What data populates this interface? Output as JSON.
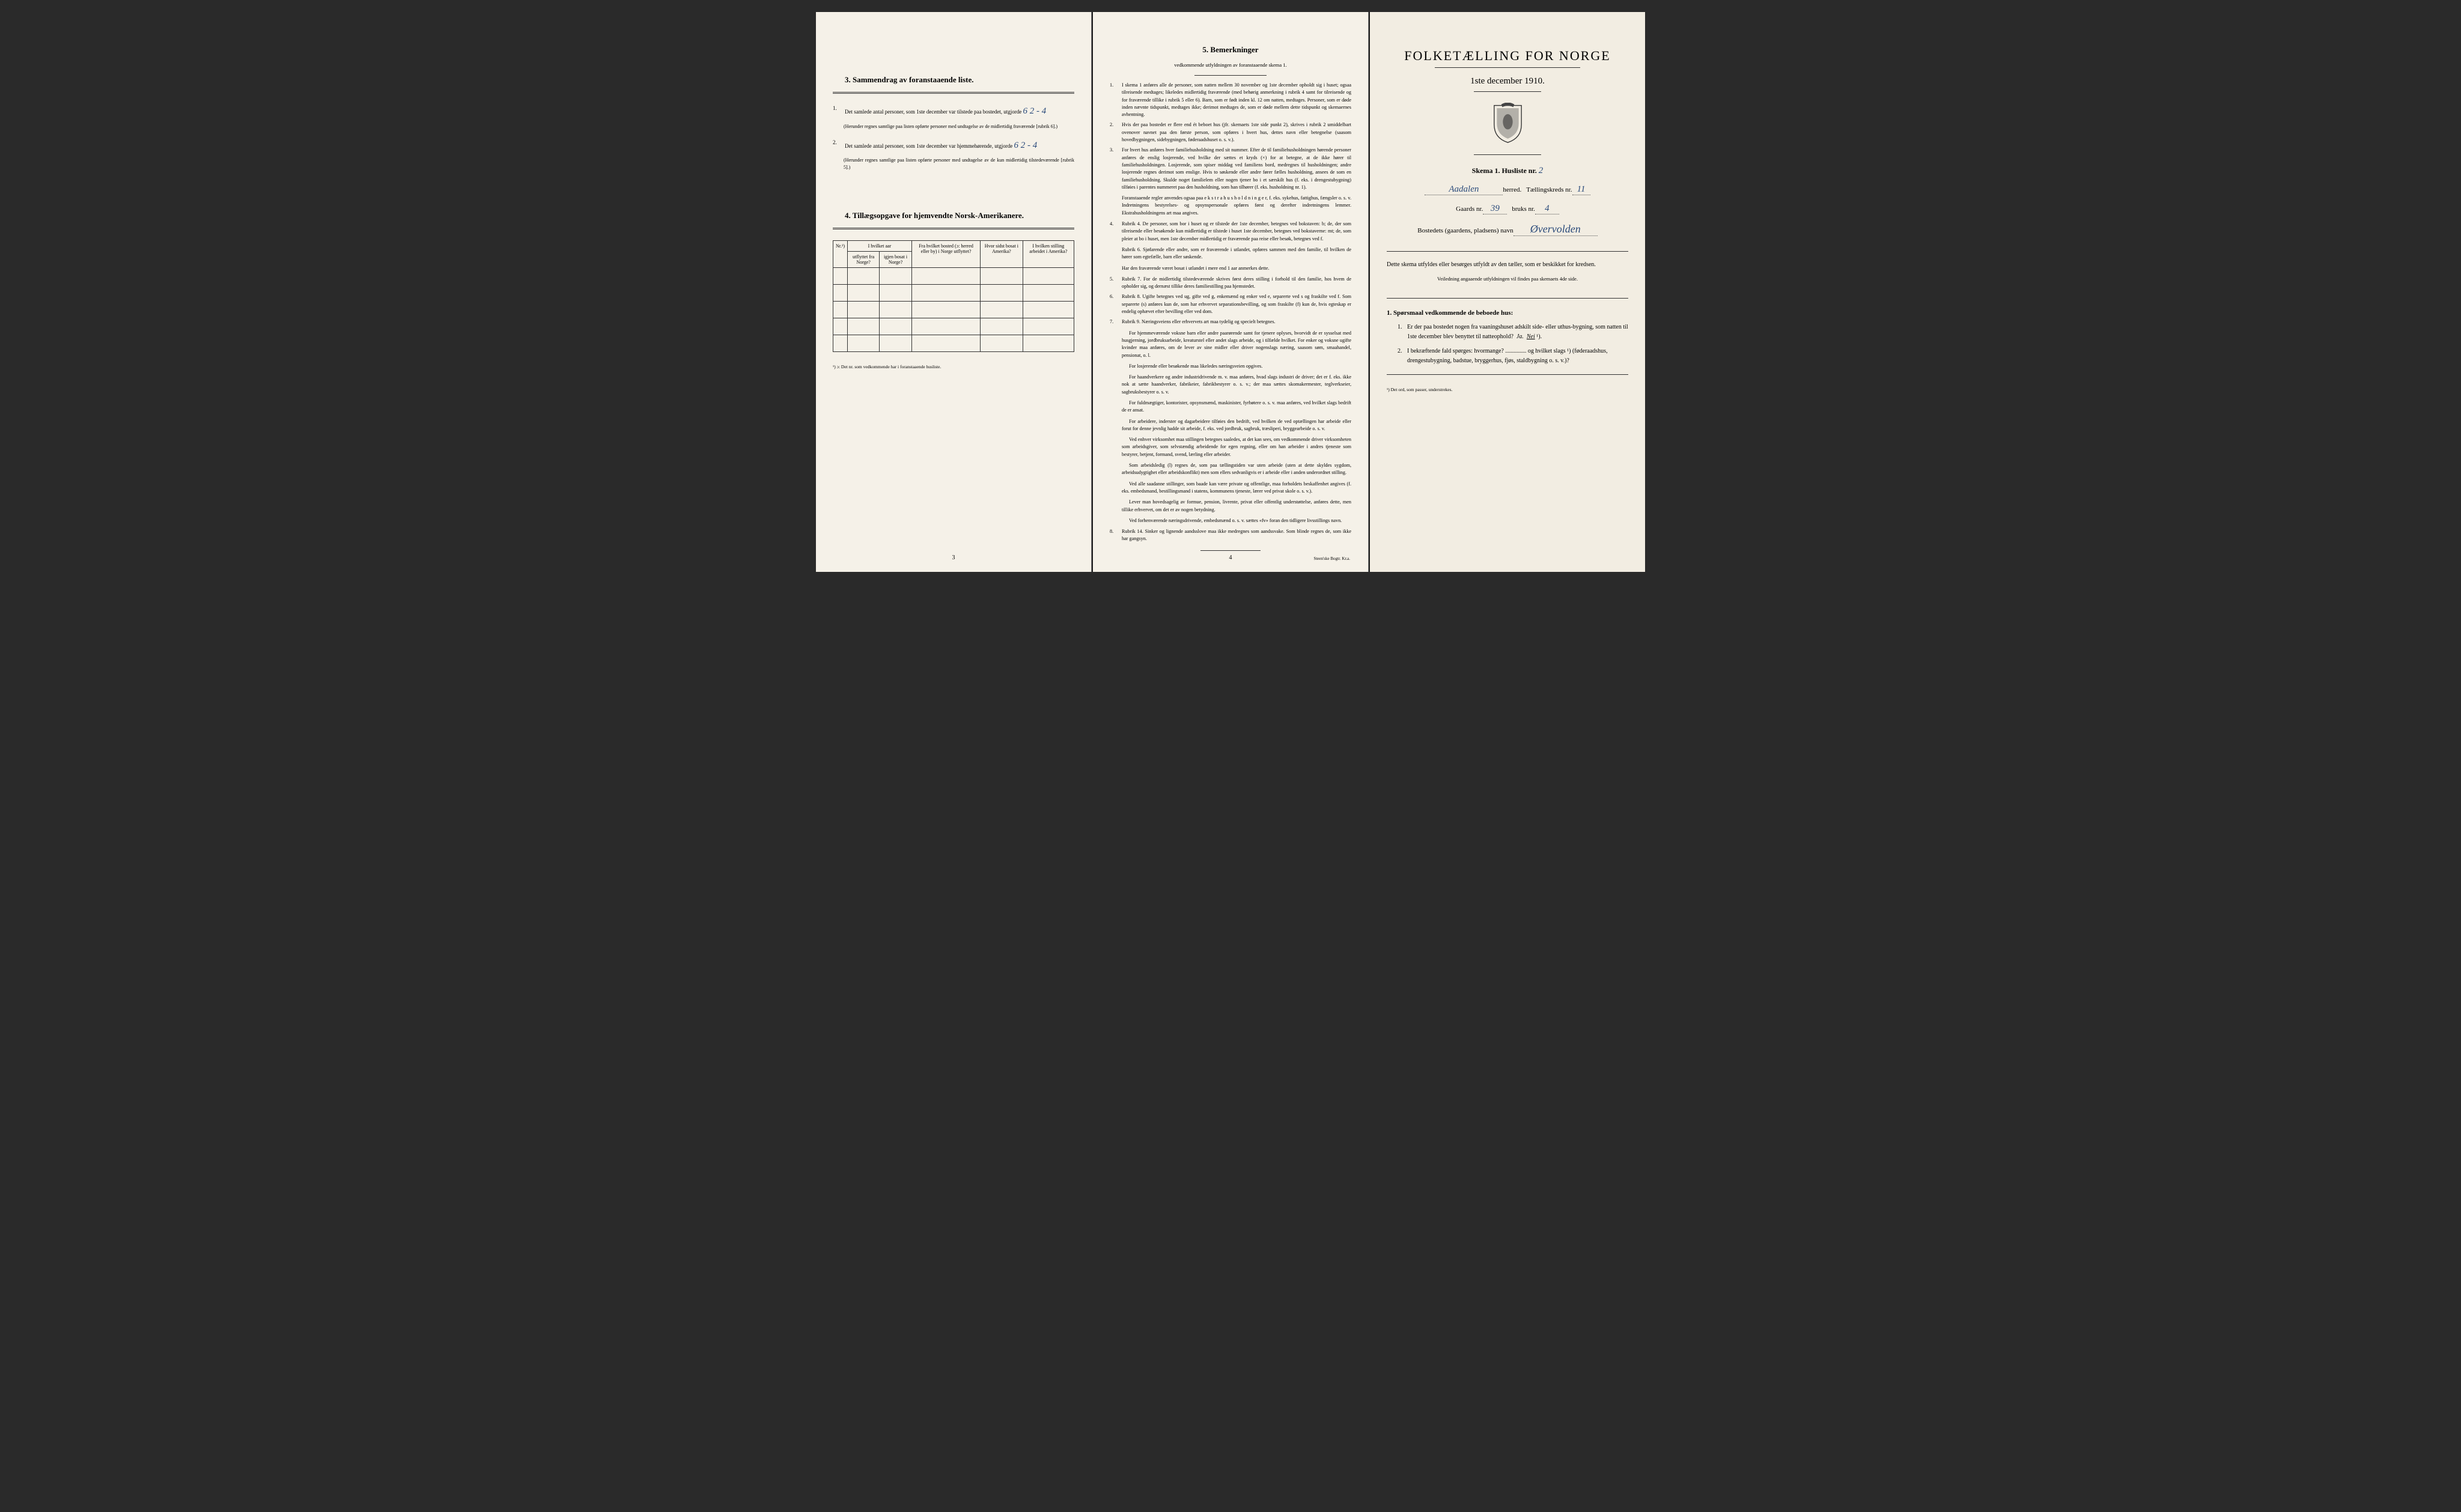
{
  "colors": {
    "paper": "#f5f1e8",
    "paper_right": "#f2ede2",
    "ink": "#222222",
    "handwriting": "#2a4a7a",
    "border": "#333333",
    "background": "#2a2a2a"
  },
  "typography": {
    "body_fontsize": 9,
    "heading_fontsize": 13,
    "cover_title_fontsize": 22,
    "footnote_fontsize": 7.5,
    "font_family": "Georgia, Times New Roman, serif",
    "handwriting_family": "Brush Script MT, cursive"
  },
  "page1": {
    "section3_heading": "3.  Sammendrag av foranstaaende liste.",
    "item1_text": "Det samlede antal personer, som 1ste december var tilstede paa bostedet, utgjorde",
    "item1_value": "6   2 - 4",
    "item1_note": "(Herunder regnes samtlige paa listen opførte personer med undtagelse av de midlertidig fraværende [rubrik 6].)",
    "item2_text": "Det samlede antal personer, som 1ste december var hjemmehørende, utgjorde",
    "item2_value": "6   2 - 4",
    "item2_note": "(Herunder regnes samtlige paa listen opførte personer med undtagelse av de kun midlertidig tilstedeværende [rubrik 5].)",
    "section4_heading": "4.  Tillægsopgave for hjemvendte Norsk-Amerikanere.",
    "table": {
      "columns": [
        "Nr.¹)",
        "I hvilket aar",
        "Fra hvilket bosted (ɔ: herred eller by) i Norge utflyttet?",
        "Hvor sidst bosat i Amerika?",
        "I hvilken stilling arbeidet i Amerika?"
      ],
      "sub_columns_col2": [
        "utflyttet fra Norge?",
        "igjen bosat i Norge?"
      ],
      "row_count": 5
    },
    "footnote": "¹) ɔ: Det nr. som vedkommende har i foranstaaende husliste.",
    "page_number": "3"
  },
  "page2": {
    "heading": "5.  Bemerkninger",
    "subheading": "vedkommende utfyldningen av foranstaaende skema 1.",
    "items": [
      {
        "num": "1.",
        "text": "I skema 1 anføres alle de personer, som natten mellem 30 november og 1ste december opholdt sig i huset; ogsaa tilreisende medtages; likeledes midlertidig fraværende (med behørig anmerkning i rubrik 4 samt for tilreisende og for fraværende tillike i rubrik 5 eller 6). Barn, som er født inden kl. 12 om natten, medtages. Personer, som er døde inden nævnte tidspunkt, medtages ikke; derimot medtages de, som er døde mellem dette tidspunkt og skemaernes avhentning."
      },
      {
        "num": "2.",
        "text": "Hvis der paa bostedet er flere end ét beboet hus (jfr. skemaets 1ste side punkt 2), skrives i rubrik 2 umiddelbart ovenover navnet paa den første person, som opføres i hvert hus, dettes navn eller betegnelse (saasom hovedbygningen, sidebygningen, føderaadshuset o. s. v.)."
      },
      {
        "num": "3.",
        "text": "For hvert hus anføres hver familiehusholdning med sit nummer. Efter de til familiehusholdningen hørende personer anføres de enslig losjerende, ved hvilke der sættes et kryds (×) for at betegne, at de ikke hører til familiehusholdningen. Losjerende, som spiser middag ved familiens bord, medregnes til husholdningen; andre losjerende regnes derimot som enslige. Hvis to søskende eller andre fører fælles husholdning, ansees de som en familiehusholdning. Skulde noget familielem eller nogen tjener bo i et særskilt hus (f. eks. i drengestubygning) tilføies i parentes nummeret paa den husholdning, som han tilhører (f. eks. husholdning nr. 1).",
        "extra": "Foranstaaende regler anvendes ogsaa paa e k s t r a h u s h o l d n i n g e r, f. eks. sykehus, fattighus, fængsler o. s. v. Indretningens bestyrelses- og opsynspersonale opføres først og derefter indretningens lemmer. Ekstrahusholdningens art maa angives."
      },
      {
        "num": "4.",
        "text": "Rubrik 4. De personer, som bor i huset og er tilstede der 1ste december, betegnes ved bokstaven: b; de, der som tilreisende eller besøkende kun midlertidig er tilstede i huset 1ste december, betegnes ved bokstaverne: mt; de, som pleier at bo i huset, men 1ste december midlertidig er fraværende paa reise eller besøk, betegnes ved f.",
        "extra": "Rubrik 6. Sjøfarende eller andre, som er fraværende i utlandet, opføres sammen med den familie, til hvilken de hører som egtefælle, barn eller søskende.",
        "extra2": "Har den fraværende været bosat i utlandet i mere end 1 aar anmerkes dette."
      },
      {
        "num": "5.",
        "text": "Rubrik 7. For de midlertidig tilstedeværende skrives først deres stilling i forhold til den familie, hos hvem de opholder sig, og dernæst tillike deres familiestilling paa hjemstedet."
      },
      {
        "num": "6.",
        "text": "Rubrik 8. Ugifte betegnes ved ug, gifte ved g, enkemænd og enker ved e, separerte ved s og fraskilte ved f. Som separerte (s) anføres kun de, som har erhvervet separationsbevilling, og som fraskilte (f) kun de, hvis egteskap er endelig ophævet efter bevilling eller ved dom."
      },
      {
        "num": "7.",
        "text": "Rubrik 9. Næringsveiens eller erhvervets art maa tydelig og specielt betegnes.",
        "paragraphs": [
          "For hjemmeværende voksne barn eller andre paarørende samt for tjenere oplyses, hvorvidt de er sysselsat med husgjerning, jordbruksarbeide, kreaturstel eller andet slags arbeide, og i tilfælde hvilket. For enker og voksne ugifte kvinder maa anføres, om de lever av sine midler eller driver nogenslags næring, saasom søm, smaahandel, pensionat, o. l.",
          "For losjerende eller besøkende maa likeledes næringsveien opgives.",
          "For haandverkere og andre industridrivende m. v. maa anføres, hvad slags industri de driver; det er f. eks. ikke nok at sætte haandverker, fabrikeier, fabrikbestyrer o. s. v.; der maa sættes skomakermester, teglverkseier, sagbruksbestyrer o. s. v.",
          "For fuldmægtiger, kontorister, opsynsmænd, maskinister, fyrbøtere o. s. v. maa anføres, ved hvilket slags bedrift de er ansat.",
          "For arbeidere, inderster og dagarbeidere tilføies den bedrift, ved hvilken de ved optællingen har arbeide eller forut for denne jevnlig hadde sit arbeide, f. eks. ved jordbruk, sagbruk, træsliperi, bryggearbeide o. s. v.",
          "Ved enhver virksomhet maa stillingen betegnes saaledes, at det kan sees, om vedkommende driver virksomheten som arbeidsgiver, som selvstændig arbeidende for egen regning, eller om han arbeider i andres tjeneste som bestyrer, betjent, formand, svend, lærling eller arbeider.",
          "Som arbeidsledig (l) regnes de, som paa tællingstiden var uten arbeide (uten at dette skyldes sygdom, arbeidsudygtighet eller arbeidskonflikt) men som ellers sedvanligvis er i arbeide eller i anden underordnet stilling.",
          "Ved alle saadanne stillinger, som baade kan være private og offentlige, maa forholdets beskaffenhet angives (f. eks. embedsmand, bestillingsmand i statens, kommunens tjeneste, lærer ved privat skole o. s. v.).",
          "Lever man hovedsagelig av formue, pension, livrente, privat eller offentlig understøttelse, anføres dette, men tillike erhvervet, om det er av nogen betydning.",
          "Ved forhenværende næringsdrivende, embedsmænd o. s. v. sættes «fv» foran den tidligere livsstillings navn."
        ]
      },
      {
        "num": "8.",
        "text": "Rubrik 14. Sinker og lignende aandsslove maa ikke medregnes som aandssvake. Som blinde regnes de, som ikke har gangsyn."
      }
    ],
    "page_number": "4",
    "imprint": "Steen'ske Bogtr.  Kr.a."
  },
  "page3": {
    "title": "FOLKETÆLLING FOR NORGE",
    "date": "1ste december 1910.",
    "skema_label": "Skema 1.   Husliste nr.",
    "husliste_nr": "2",
    "herred_label": "herred.",
    "herred_value": "Aadalen",
    "kreds_label": "Tællingskreds nr.",
    "kreds_value": "11",
    "gaards_label": "Gaards nr.",
    "gaards_value": "39",
    "bruks_label": "bruks nr.",
    "bruks_value": "4",
    "bosted_label": "Bostedets (gaardens, pladsens) navn",
    "bosted_value": "Øvervolden",
    "instruction_main": "Dette skema utfyldes eller besørges utfyldt av den tæller, som er beskikket for kredsen.",
    "instruction_sub": "Veiledning angaaende utfyldningen vil findes paa skemaets 4de side.",
    "q_heading": "1. Spørsmaal vedkommende de beboede hus:",
    "questions": [
      {
        "num": "1.",
        "text": "Er der paa bostedet nogen fra vaaningshuset adskilt side- eller uthus-bygning, som natten til 1ste december blev benyttet til natteophold?  Ja.  Nei ¹).",
        "answer_ja": "Ja.",
        "answer_nei": "Nei",
        "answer_selected": "Nei"
      },
      {
        "num": "2.",
        "text": "I bekræftende fald spørges: hvormange? .............. og hvilket slags ¹) (føderaadshus, drengestubygning, badstue, bryggerhus, fjøs, staldbygning o. s. v.)?"
      }
    ],
    "footnote": "¹) Det ord, som passer, understrekes."
  }
}
